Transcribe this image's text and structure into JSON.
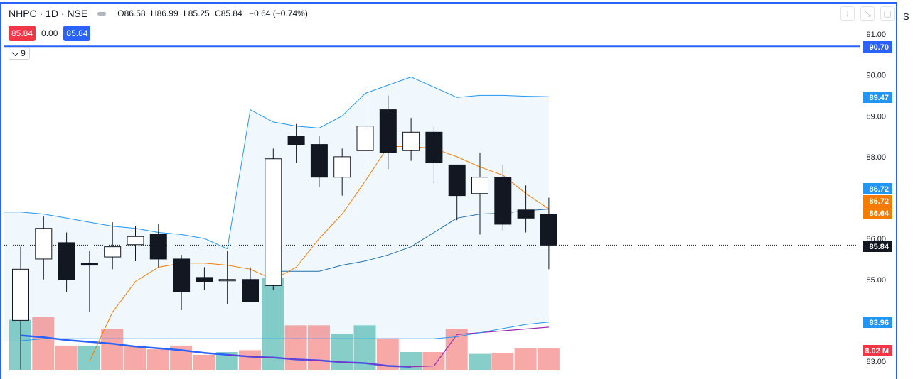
{
  "header": {
    "symbol": "NHPC · 1D · NSE",
    "open_label": "O",
    "open": "86.58",
    "high_label": "H",
    "high": "86.99",
    "low_label": "L",
    "low": "85.25",
    "close_label": "C",
    "close": "85.84",
    "change": "−0.64 (−0.74%)"
  },
  "quotes": {
    "sell": "85.84",
    "spread": "0.00",
    "buy": "85.84"
  },
  "study_toggle": {
    "count": "9"
  },
  "toolbar_icons": [
    "arrow-down-icon",
    "collapse-icon",
    "fullscreen-icon"
  ],
  "edge_char": "S",
  "colors": {
    "up_body": "#ffffff",
    "down_body": "#131722",
    "wick": "#131722",
    "bb_line": "#2196f3",
    "bb_fill": "#e3f2fd",
    "sma": "#f57c00",
    "vol_up": "#26a69a",
    "vol_down": "#ef5350",
    "vol_ma_blue": "#2962ff",
    "vol_ma_purple": "#9c27b0",
    "hline": "#2962ff",
    "axis_text": "#131722"
  },
  "chart_data": {
    "type": "candlestick",
    "y_axis": {
      "ticks": [
        "91.00",
        "90.00",
        "89.00",
        "88.00",
        "86.00",
        "85.00",
        "83.00"
      ],
      "range": [
        82.8,
        91.6
      ]
    },
    "candles": [
      {
        "o": 84.0,
        "h": 85.8,
        "l": 82.8,
        "c": 85.25
      },
      {
        "o": 85.5,
        "h": 86.55,
        "l": 85.0,
        "c": 86.25
      },
      {
        "o": 85.9,
        "h": 86.15,
        "l": 84.7,
        "c": 85.0
      },
      {
        "o": 85.4,
        "h": 85.7,
        "l": 84.2,
        "c": 85.35
      },
      {
        "o": 85.55,
        "h": 86.4,
        "l": 85.25,
        "c": 85.8
      },
      {
        "o": 85.85,
        "h": 86.3,
        "l": 85.45,
        "c": 86.05
      },
      {
        "o": 86.1,
        "h": 86.35,
        "l": 85.3,
        "c": 85.5
      },
      {
        "o": 85.5,
        "h": 85.6,
        "l": 84.25,
        "c": 84.7
      },
      {
        "o": 85.05,
        "h": 85.3,
        "l": 84.75,
        "c": 84.95
      },
      {
        "o": 85.0,
        "h": 85.7,
        "l": 84.4,
        "c": 85.0
      },
      {
        "o": 85.0,
        "h": 85.3,
        "l": 84.45,
        "c": 84.45
      },
      {
        "o": 84.85,
        "h": 88.2,
        "l": 84.75,
        "c": 87.95
      },
      {
        "o": 88.5,
        "h": 88.8,
        "l": 87.85,
        "c": 88.3
      },
      {
        "o": 88.3,
        "h": 88.5,
        "l": 87.25,
        "c": 87.5
      },
      {
        "o": 87.5,
        "h": 88.2,
        "l": 87.05,
        "c": 88.0
      },
      {
        "o": 88.15,
        "h": 89.7,
        "l": 87.75,
        "c": 88.75
      },
      {
        "o": 89.15,
        "h": 89.5,
        "l": 87.7,
        "c": 88.1
      },
      {
        "o": 88.15,
        "h": 88.95,
        "l": 87.9,
        "c": 88.6
      },
      {
        "o": 88.6,
        "h": 88.75,
        "l": 87.35,
        "c": 87.85
      },
      {
        "o": 87.8,
        "h": 87.8,
        "l": 86.45,
        "c": 87.05
      },
      {
        "o": 87.1,
        "h": 88.1,
        "l": 86.1,
        "c": 87.5
      },
      {
        "o": 87.5,
        "h": 87.8,
        "l": 86.2,
        "c": 86.35
      },
      {
        "o": 86.7,
        "h": 87.3,
        "l": 86.15,
        "c": 86.5
      },
      {
        "o": 86.6,
        "h": 87.0,
        "l": 85.25,
        "c": 85.84
      }
    ],
    "sma": [
      null,
      null,
      null,
      83.0,
      84.2,
      84.95,
      85.3,
      85.4,
      85.4,
      85.35,
      85.25,
      85.0,
      85.3,
      86.0,
      86.6,
      87.4,
      88.25,
      88.25,
      88.2,
      88.0,
      87.75,
      87.55,
      87.1,
      86.72
    ],
    "bb_upper": [
      86.65,
      86.6,
      86.5,
      86.4,
      86.3,
      86.25,
      86.15,
      86.1,
      86.0,
      85.75,
      89.15,
      88.85,
      88.75,
      88.7,
      89.0,
      89.55,
      89.75,
      89.95,
      89.7,
      89.45,
      89.5,
      89.5,
      89.48,
      89.47
    ],
    "bb_lower": [
      null,
      null,
      null,
      null,
      null,
      null,
      null,
      null,
      null,
      null,
      null,
      85.2,
      85.2,
      85.2,
      85.35,
      85.45,
      85.6,
      85.8,
      86.15,
      86.5,
      86.6,
      86.62,
      86.68,
      86.72
    ],
    "bb_lower2": [
      83.5,
      83.55,
      83.55,
      83.55,
      83.55,
      83.55,
      83.55,
      83.55,
      83.55,
      83.55,
      83.55,
      83.55,
      83.55,
      83.55,
      83.55,
      83.55,
      83.55,
      83.55,
      83.55,
      83.6,
      83.7,
      83.8,
      83.9,
      83.96
    ],
    "volume": [
      {
        "v": 0.55,
        "up": true
      },
      {
        "v": 0.58,
        "up": false
      },
      {
        "v": 0.27,
        "up": false
      },
      {
        "v": 0.27,
        "up": true
      },
      {
        "v": 0.45,
        "up": false
      },
      {
        "v": 0.27,
        "up": false
      },
      {
        "v": 0.23,
        "up": false
      },
      {
        "v": 0.27,
        "up": false
      },
      {
        "v": 0.17,
        "up": false
      },
      {
        "v": 0.2,
        "up": true
      },
      {
        "v": 0.22,
        "up": false
      },
      {
        "v": 1.0,
        "up": true
      },
      {
        "v": 0.49,
        "up": false
      },
      {
        "v": 0.49,
        "up": false
      },
      {
        "v": 0.4,
        "up": true
      },
      {
        "v": 0.49,
        "up": true
      },
      {
        "v": 0.35,
        "up": false
      },
      {
        "v": 0.2,
        "up": true
      },
      {
        "v": 0.2,
        "up": false
      },
      {
        "v": 0.45,
        "up": false
      },
      {
        "v": 0.18,
        "up": true
      },
      {
        "v": 0.19,
        "up": false
      },
      {
        "v": 0.24,
        "up": false
      },
      {
        "v": 0.24,
        "up": false
      }
    ],
    "vol_ma": [
      0.38,
      0.36,
      0.33,
      0.31,
      0.29,
      0.26,
      0.24,
      0.22,
      0.19,
      0.17,
      0.15,
      0.14,
      0.12,
      0.11,
      0.09,
      0.08,
      0.05,
      0.04,
      0.05,
      0.39,
      0.41,
      0.43,
      0.45,
      0.47
    ],
    "price_tags": [
      {
        "label": "90.70",
        "value": 90.7,
        "color": "#2962ff"
      },
      {
        "label": "89.47",
        "value": 89.47,
        "color": "#2196f3"
      },
      {
        "label": "86.72",
        "value": 86.72,
        "color": "#2196f3"
      },
      {
        "label": "86.72",
        "value": 86.72,
        "color": "#f57c00"
      },
      {
        "label": "86.64",
        "value": 86.64,
        "color": "#f57c00"
      },
      {
        "label": "85.84",
        "value": 85.84,
        "color": "#131722"
      },
      {
        "label": "83.96",
        "value": 83.96,
        "color": "#2196f3"
      },
      {
        "label": "8.02 M",
        "value": 83.45,
        "color": "#f23645"
      }
    ],
    "horizontal_line": 90.7,
    "last_price_line": 85.84
  }
}
